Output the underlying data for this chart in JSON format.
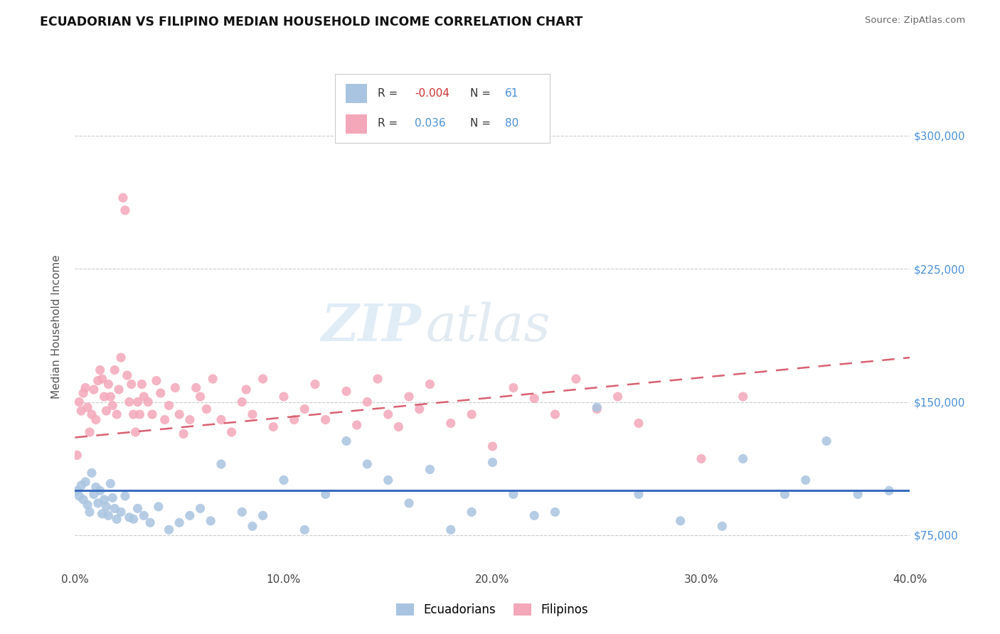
{
  "title": "ECUADORIAN VS FILIPINO MEDIAN HOUSEHOLD INCOME CORRELATION CHART",
  "source_text": "Source: ZipAtlas.com",
  "ylabel": "Median Household Income",
  "xlim": [
    0.0,
    0.4
  ],
  "ylim": [
    55000,
    330000
  ],
  "yticks": [
    75000,
    150000,
    225000,
    300000
  ],
  "ytick_labels": [
    "$75,000",
    "$150,000",
    "$225,000",
    "$300,000"
  ],
  "xticks": [
    0.0,
    0.1,
    0.2,
    0.3,
    0.4
  ],
  "xtick_labels": [
    "0.0%",
    "10.0%",
    "20.0%",
    "30.0%",
    "40.0%"
  ],
  "legend_r1": "-0.004",
  "legend_n1": "61",
  "legend_r2": "0.036",
  "legend_n2": "80",
  "ecuadorian_color": "#a8c4e0",
  "filipino_color": "#f4a7b9",
  "ecuadorian_line_color": "#3a6bbf",
  "filipino_line_color": "#d96070",
  "background_color": "#ffffff",
  "watermark_zip": "ZIP",
  "watermark_atlas": "atlas",
  "ecuadorian_label": "Ecuadorians",
  "filipino_label": "Filipinos",
  "ecu_line_y0": 100000,
  "ecu_line_y1": 100000,
  "fil_line_y0": 130000,
  "fil_line_y1": 175000,
  "ecuadorian_points_x": [
    0.001,
    0.002,
    0.003,
    0.004,
    0.005,
    0.006,
    0.007,
    0.008,
    0.009,
    0.01,
    0.011,
    0.012,
    0.013,
    0.014,
    0.015,
    0.016,
    0.017,
    0.018,
    0.019,
    0.02,
    0.022,
    0.024,
    0.026,
    0.028,
    0.03,
    0.033,
    0.036,
    0.04,
    0.045,
    0.05,
    0.055,
    0.06,
    0.065,
    0.07,
    0.08,
    0.085,
    0.09,
    0.1,
    0.11,
    0.12,
    0.13,
    0.14,
    0.15,
    0.16,
    0.17,
    0.18,
    0.19,
    0.2,
    0.21,
    0.22,
    0.23,
    0.25,
    0.27,
    0.29,
    0.31,
    0.32,
    0.34,
    0.35,
    0.36,
    0.375,
    0.39
  ],
  "ecuadorian_points_y": [
    100000,
    97000,
    103000,
    95000,
    105000,
    92000,
    88000,
    110000,
    98000,
    102000,
    93000,
    100000,
    87000,
    95000,
    91000,
    86000,
    104000,
    96000,
    90000,
    84000,
    88000,
    97000,
    85000,
    84000,
    90000,
    86000,
    82000,
    91000,
    78000,
    82000,
    86000,
    90000,
    83000,
    115000,
    88000,
    80000,
    86000,
    106000,
    78000,
    98000,
    128000,
    115000,
    106000,
    93000,
    112000,
    78000,
    88000,
    116000,
    98000,
    86000,
    88000,
    147000,
    98000,
    83000,
    80000,
    118000,
    98000,
    106000,
    128000,
    98000,
    100000
  ],
  "filipino_points_x": [
    0.001,
    0.002,
    0.003,
    0.004,
    0.005,
    0.006,
    0.007,
    0.008,
    0.009,
    0.01,
    0.011,
    0.012,
    0.013,
    0.014,
    0.015,
    0.016,
    0.017,
    0.018,
    0.019,
    0.02,
    0.021,
    0.022,
    0.023,
    0.024,
    0.025,
    0.026,
    0.027,
    0.028,
    0.029,
    0.03,
    0.031,
    0.032,
    0.033,
    0.035,
    0.037,
    0.039,
    0.041,
    0.043,
    0.045,
    0.048,
    0.05,
    0.052,
    0.055,
    0.058,
    0.06,
    0.063,
    0.066,
    0.07,
    0.075,
    0.08,
    0.082,
    0.085,
    0.09,
    0.095,
    0.1,
    0.105,
    0.11,
    0.115,
    0.12,
    0.13,
    0.135,
    0.14,
    0.145,
    0.15,
    0.155,
    0.16,
    0.165,
    0.17,
    0.18,
    0.19,
    0.2,
    0.21,
    0.22,
    0.23,
    0.24,
    0.25,
    0.26,
    0.27,
    0.3,
    0.32
  ],
  "filipino_points_y": [
    120000,
    150000,
    145000,
    155000,
    158000,
    147000,
    133000,
    143000,
    157000,
    140000,
    162000,
    168000,
    163000,
    153000,
    145000,
    160000,
    153000,
    148000,
    168000,
    143000,
    157000,
    175000,
    265000,
    258000,
    165000,
    150000,
    160000,
    143000,
    133000,
    150000,
    143000,
    160000,
    153000,
    150000,
    143000,
    162000,
    155000,
    140000,
    148000,
    158000,
    143000,
    132000,
    140000,
    158000,
    153000,
    146000,
    163000,
    140000,
    133000,
    150000,
    157000,
    143000,
    163000,
    136000,
    153000,
    140000,
    146000,
    160000,
    140000,
    156000,
    137000,
    150000,
    163000,
    143000,
    136000,
    153000,
    146000,
    160000,
    138000,
    143000,
    125000,
    158000,
    152000,
    143000,
    163000,
    146000,
    153000,
    138000,
    118000,
    153000
  ]
}
